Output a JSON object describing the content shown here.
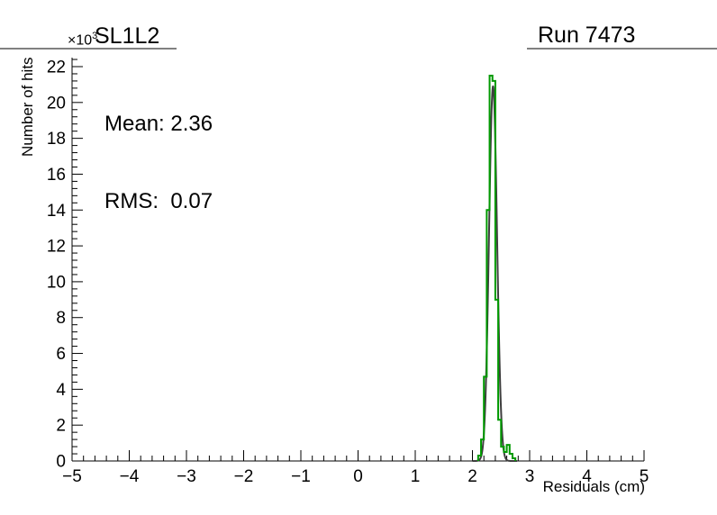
{
  "title": "SL1L2",
  "run_label": "Run 7473",
  "scale": {
    "base": "×10",
    "exponent": "3"
  },
  "stats": {
    "mean": "Mean: 2.36",
    "rms": "RMS:  0.07"
  },
  "axes": {
    "x": {
      "label": "Residuals (cm)",
      "min": -5,
      "max": 5,
      "major_step": 1,
      "minor_step": 0.2,
      "tick_labels": [
        "−5",
        "−4",
        "−3",
        "−2",
        "−1",
        "0",
        "1",
        "2",
        "3",
        "4",
        "5"
      ]
    },
    "y": {
      "label": "Number of hits",
      "min": 0,
      "max": 22000,
      "major_step": 2000,
      "minor_step": 400,
      "tick_labels": [
        "0",
        "2",
        "4",
        "6",
        "8",
        "10",
        "12",
        "14",
        "16",
        "18",
        "20",
        "22"
      ]
    }
  },
  "chart_data": {
    "type": "bar",
    "subtype": "histogram-with-fit",
    "title": "SL1L2",
    "annotations": [
      "Mean: 2.36",
      "RMS:  0.07",
      "Run 7473",
      "×10³"
    ],
    "xlabel": "Residuals (cm)",
    "ylabel": "Number of hits",
    "xlim": [
      -5,
      5
    ],
    "ylim": [
      0,
      22000
    ],
    "y_scale_label": "×10³",
    "grid": false,
    "legend": "none",
    "series": [
      {
        "name": "fit-curve",
        "type": "gaussian",
        "color": "#3f3f3f",
        "mean": 2.36,
        "sigma": 0.07,
        "amplitude": 20900,
        "draw_range": [
          2.0,
          2.78
        ]
      },
      {
        "name": "residuals-histogram",
        "type": "step",
        "color": "#009900",
        "bin_start": 2.1,
        "bin_width": 0.05,
        "counts": [
          300,
          1200,
          4700,
          14000,
          21500,
          21200,
          9000,
          2300,
          800,
          500,
          900,
          400,
          150
        ]
      }
    ]
  }
}
